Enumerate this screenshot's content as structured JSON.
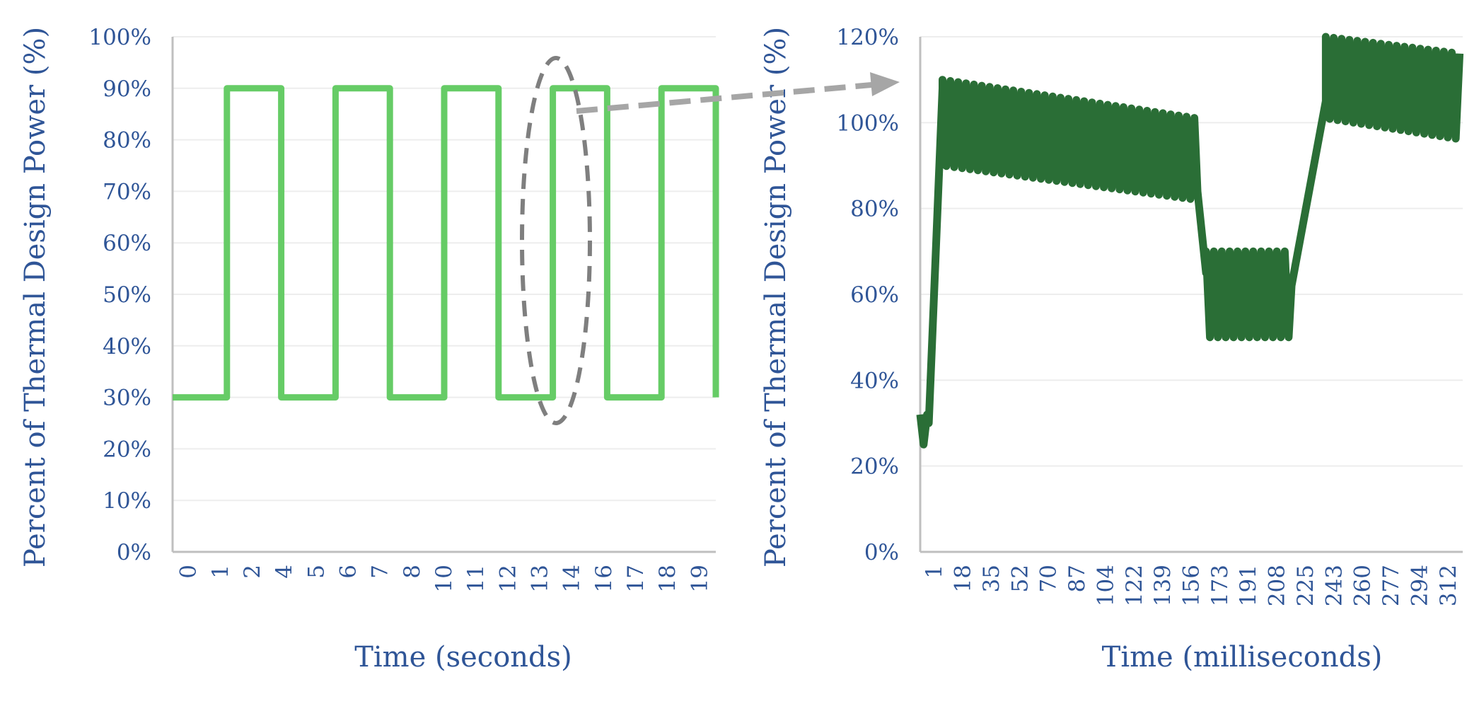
{
  "colors": {
    "text": "#2F5597",
    "grid": "#EDEDED",
    "axis": "#BFBFBF",
    "left_line": "#66CC66",
    "right_line": "#2A6E36",
    "ellipse": "#7F7F7F",
    "arrow": "#A6A6A6"
  },
  "chart_data": [
    {
      "type": "line",
      "xlabel": "Time (seconds)",
      "ylabel": "Percent of Thermal Design Power (%)",
      "ylim": [
        0,
        100
      ],
      "yticks": [
        "0%",
        "10%",
        "20%",
        "30%",
        "40%",
        "50%",
        "60%",
        "70%",
        "80%",
        "90%",
        "100%"
      ],
      "xlim": [
        0,
        20
      ],
      "xticks": [
        "0",
        "1",
        "2",
        "4",
        "5",
        "6",
        "7",
        "8",
        "10",
        "11",
        "12",
        "13",
        "14",
        "16",
        "17",
        "18",
        "19"
      ],
      "grid": "horizontal",
      "series": [
        {
          "x": [
            0,
            2.0,
            2.0,
            4.0,
            4.0,
            6.0,
            6.0,
            8.0,
            8.0,
            10.0,
            10.0,
            12.0,
            12.0,
            14.0,
            14.0,
            16.0,
            16.0,
            18.0,
            18.0,
            20.0,
            20.0
          ],
          "y": [
            30,
            30,
            90,
            90,
            30,
            30,
            90,
            90,
            30,
            30,
            90,
            90,
            30,
            30,
            90,
            90,
            30,
            30,
            90,
            90,
            30
          ]
        }
      ]
    },
    {
      "type": "line",
      "xlabel": "Time (milliseconds)",
      "ylabel": "Percent of Thermal Design Power (%)",
      "ylim": [
        0,
        120
      ],
      "yticks": [
        "0%",
        "20%",
        "40%",
        "60%",
        "80%",
        "100%",
        "120%"
      ],
      "xlim": [
        1,
        318
      ],
      "xticks": [
        "1",
        "18",
        "35",
        "52",
        "70",
        "87",
        "104",
        "122",
        "139",
        "156",
        "173",
        "191",
        "208",
        "225",
        "243",
        "260",
        "277",
        "294",
        "312"
      ],
      "grid": "horizontal",
      "segments": [
        {
          "x_start": 1,
          "x_end": 6,
          "low": 25,
          "high": 32,
          "period": 4
        },
        {
          "x_start": 6,
          "x_end": 14,
          "ramp_from": 30,
          "ramp_to": 108
        },
        {
          "x_start": 14,
          "x_end": 163,
          "high_start": 110,
          "high_end": 101,
          "low_start": 90,
          "low_end": 82,
          "period": 4.6
        },
        {
          "x_start": 163,
          "x_end": 168,
          "ramp_from": 84,
          "ramp_to": 65
        },
        {
          "x_start": 168,
          "x_end": 218,
          "low": 50,
          "high": 70,
          "period": 4.6
        },
        {
          "x_start": 218,
          "x_end": 238,
          "ramp_from": 62,
          "ramp_to": 105
        },
        {
          "x_start": 238,
          "x_end": 318,
          "high_start": 120,
          "high_end": 116,
          "low_start": 101,
          "low_end": 96,
          "period": 4.6
        }
      ]
    }
  ]
}
